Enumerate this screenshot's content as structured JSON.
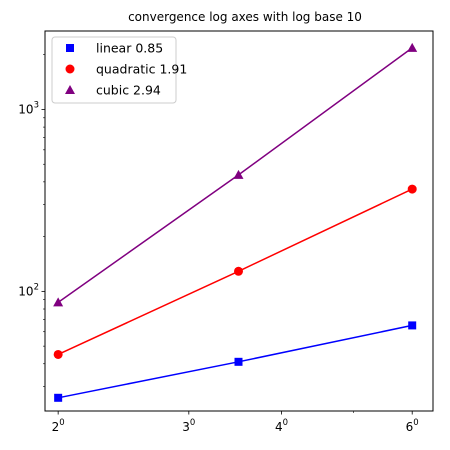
{
  "chart_data": {
    "type": "line",
    "title": "convergence log axes with log base 10",
    "xlabel": "",
    "ylabel": "",
    "xscale": "log",
    "yscale": "log",
    "xlim": [
      1.92,
      6.4
    ],
    "ylim": [
      22,
      2700
    ],
    "x": [
      2,
      3.5,
      6
    ],
    "x_ticks": [
      {
        "value": 2,
        "base": "2",
        "exp": "0"
      },
      {
        "value": 3,
        "base": "3",
        "exp": "0"
      },
      {
        "value": 4,
        "base": "4",
        "exp": "0"
      },
      {
        "value": 6,
        "base": "6",
        "exp": "0"
      }
    ],
    "x_minor_ticks": [
      5
    ],
    "y_ticks": [
      {
        "value": 100,
        "base": "10",
        "exp": "2"
      },
      {
        "value": 1000,
        "base": "10",
        "exp": "3"
      }
    ],
    "y_minor_ticks": [
      30,
      40,
      50,
      60,
      70,
      80,
      90,
      200,
      300,
      400,
      500,
      600,
      700,
      800,
      900,
      2000
    ],
    "grid": false,
    "legend_position": "upper-left",
    "series": [
      {
        "name": "linear 0.85",
        "marker": "square",
        "color": "#0000ff",
        "values": [
          26,
          41,
          65
        ]
      },
      {
        "name": "quadratic 1.91",
        "marker": "circle",
        "color": "#ff0000",
        "values": [
          45,
          129,
          365
        ]
      },
      {
        "name": "cubic 2.94",
        "marker": "triangle",
        "color": "#800080",
        "values": [
          87,
          437,
          2180
        ]
      }
    ]
  }
}
